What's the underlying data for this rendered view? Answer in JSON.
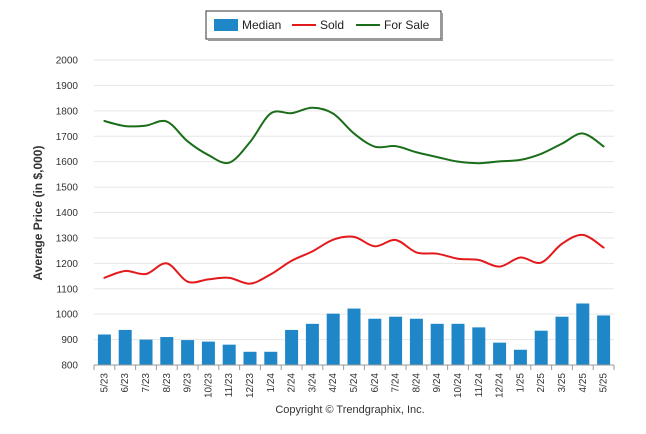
{
  "legend": {
    "median_label": "Median",
    "sold_label": "Sold",
    "for_sale_label": "For Sale"
  },
  "footer": {
    "credit": "Copyright © Trendgraphix, Inc."
  },
  "colors": {
    "median": "#1f86c8",
    "sold": "#e31a1c",
    "for_sale": "#1a6e1a",
    "grid": "#e6e6e6"
  },
  "chart_data": {
    "type": "bar",
    "title": "",
    "xlabel": "",
    "ylabel": "Average Price (in $,000)",
    "ylim": [
      800,
      2000
    ],
    "y_ticks": [
      800,
      900,
      1000,
      1100,
      1200,
      1300,
      1400,
      1500,
      1600,
      1700,
      1800,
      1900,
      2000
    ],
    "grid": true,
    "legend_position": "top-center",
    "categories": [
      "5/23",
      "6/23",
      "7/23",
      "8/23",
      "9/23",
      "10/23",
      "11/23",
      "12/23",
      "1/24",
      "2/24",
      "3/24",
      "4/24",
      "5/24",
      "6/24",
      "7/24",
      "8/24",
      "9/24",
      "10/24",
      "11/24",
      "12/24",
      "1/25",
      "2/25",
      "3/25",
      "4/25",
      "5/25"
    ],
    "series": [
      {
        "name": "Median",
        "type": "bar",
        "values": [
          920,
          938,
          900,
          910,
          898,
          892,
          880,
          852,
          852,
          938,
          962,
          1002,
          1022,
          982,
          990,
          982,
          962,
          962,
          948,
          888,
          860,
          935,
          990,
          1042,
          995
        ]
      },
      {
        "name": "Sold",
        "type": "line",
        "values": [
          1143,
          1170,
          1158,
          1200,
          1128,
          1137,
          1143,
          1120,
          1157,
          1210,
          1247,
          1293,
          1304,
          1267,
          1292,
          1243,
          1238,
          1218,
          1213,
          1187,
          1223,
          1203,
          1277,
          1312,
          1262
        ]
      },
      {
        "name": "For Sale",
        "type": "line",
        "values": [
          1760,
          1740,
          1742,
          1758,
          1680,
          1626,
          1596,
          1677,
          1790,
          1791,
          1812,
          1789,
          1711,
          1659,
          1661,
          1637,
          1618,
          1600,
          1594,
          1601,
          1607,
          1631,
          1671,
          1711,
          1660
        ]
      }
    ]
  }
}
